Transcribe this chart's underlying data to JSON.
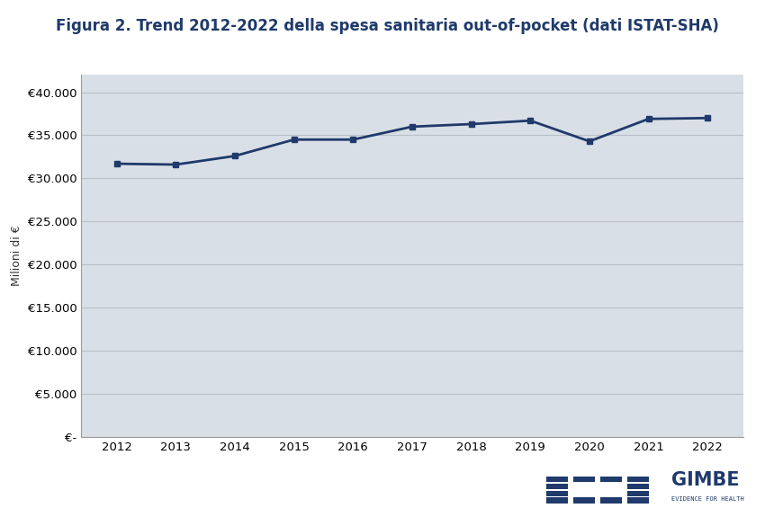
{
  "title": "Figura 2. Trend 2012-2022 della spesa sanitaria out-of-pocket (dati ISTAT-SHA)",
  "ylabel": "Milioni di €",
  "years": [
    2012,
    2013,
    2014,
    2015,
    2016,
    2017,
    2018,
    2019,
    2020,
    2021,
    2022
  ],
  "values": [
    31700,
    31600,
    32600,
    34500,
    34500,
    36000,
    36300,
    36700,
    34300,
    36900,
    37000
  ],
  "line_color": "#1f3a6b",
  "marker": "s",
  "marker_size": 5,
  "line_width": 2.0,
  "ylim": [
    0,
    42000
  ],
  "yticks": [
    0,
    5000,
    10000,
    15000,
    20000,
    25000,
    30000,
    35000,
    40000
  ],
  "ytick_labels": [
    "€-",
    "€5.000",
    "€10.000",
    "€15.000",
    "€20.000",
    "€25.000",
    "€30.000",
    "€35.000",
    "€40.000"
  ],
  "background_color": "#d9dfe6",
  "outer_background": "#ffffff",
  "grid_color": "#b8bfc8",
  "title_color": "#1f3a6b",
  "title_fontsize": 12,
  "axis_fontsize": 9.5,
  "ylabel_fontsize": 9
}
